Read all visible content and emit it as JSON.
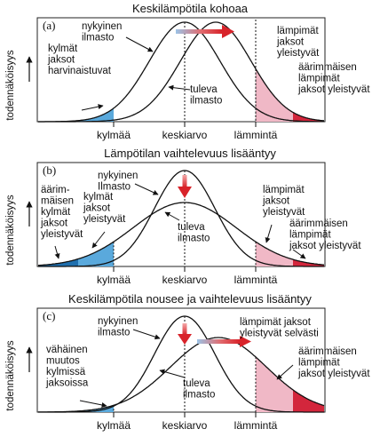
{
  "panels": [
    {
      "title": "Keskilämpötila kohoaa",
      "letter": "(a)",
      "ylabel": "todennäköisyys",
      "x_labels": [
        "kylmää",
        "keskiarvo",
        "lämmintä"
      ],
      "annotations": {
        "current": "nykyinen\nilmasto",
        "future": "tuleva\nilmasto",
        "cold": "kylmät\njaksot\nharvinaistuvat",
        "warm": "lämpimät\njaksot\nyleistyvät",
        "extreme": "äärimmäisen\nlämpimät\njaksot yleistyvät"
      }
    },
    {
      "title": "Lämpötilan vaihtelevuus lisääntyy",
      "letter": "(b)",
      "ylabel": "todennäköisyys",
      "x_labels": [
        "kylmää",
        "keskiarvo",
        "lämmintä"
      ],
      "annotations": {
        "current": "nykyinen\nIlmasto",
        "future": "tuleva\nilmasto",
        "cold": "kylmät\njaksot\nyleistyvät",
        "extreme_cold": "äärim-\nmäisen\nkylmät\njaksot\nyleistyvät",
        "warm": "lämpimät\njaksot\nyleistyvät",
        "extreme": "äärimmäisen\nlämpimät\njaksot yleistyvät"
      }
    },
    {
      "title": "Keskilämpötila nousee ja vaihtelevuus lisääntyy",
      "letter": "(c)",
      "ylabel": "todennäköisyys",
      "x_labels": [
        "kylmää",
        "keskiarvo",
        "lämmintä"
      ],
      "annotations": {
        "current": "nykyinen\nilmasto",
        "future": "tuleva\nilmasto",
        "cold": "vähäinen\nmuutos\nkylmissä\njaksoissa",
        "warm": "lämpimät jaksot\nyleistyvät selvästi",
        "extreme": "äärimmäisen\nlämpimät\njaksot yleistyvät"
      }
    }
  ],
  "colors": {
    "cold_fill": "#5aa9dc",
    "cold_dark": "#1f6fae",
    "warm_fill": "#f0b8c6",
    "extreme_fill": "#d3263c",
    "arrow_red": "#d8232a",
    "arrow_blue": "#9cc3e6"
  }
}
